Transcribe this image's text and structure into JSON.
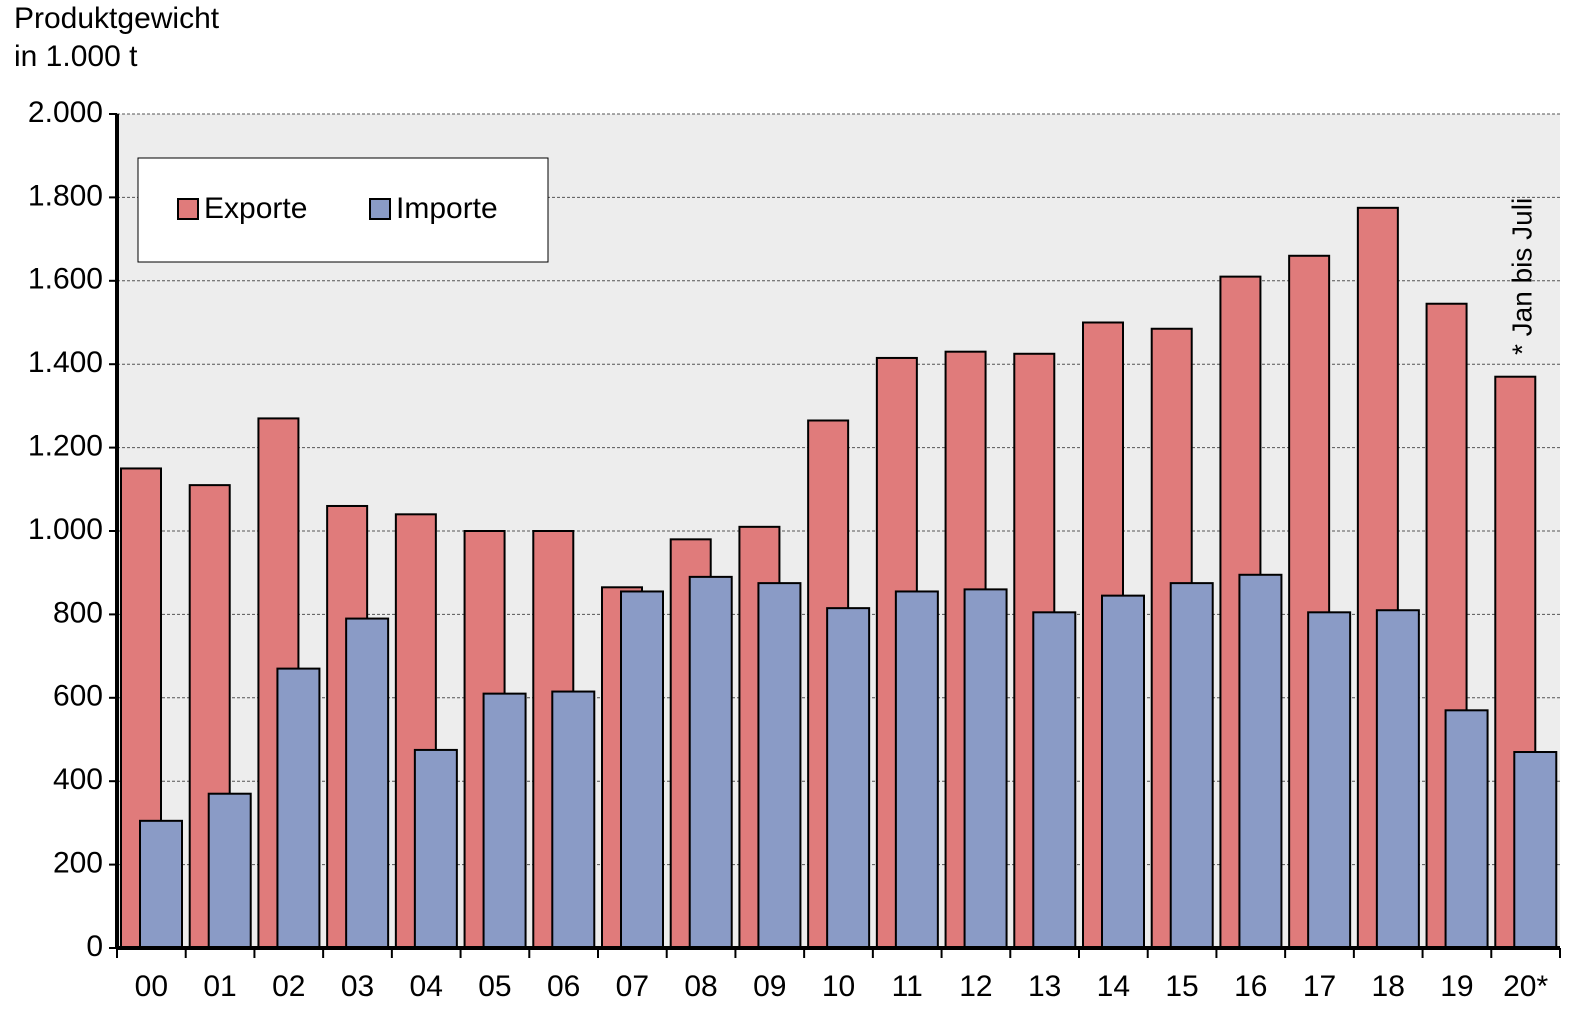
{
  "chart_data": {
    "type": "bar",
    "y_label_lines": [
      "Produktgewicht",
      "in 1.000 t"
    ],
    "annotation": "* Jan bis Juli",
    "categories": [
      "00",
      "01",
      "02",
      "03",
      "04",
      "05",
      "06",
      "07",
      "08",
      "09",
      "10",
      "11",
      "12",
      "13",
      "14",
      "15",
      "16",
      "17",
      "18",
      "19",
      "20*"
    ],
    "series": [
      {
        "name": "Exporte",
        "color": "#e07b7b",
        "values": [
          1150,
          1110,
          1270,
          1060,
          1040,
          1000,
          1000,
          865,
          980,
          1010,
          1265,
          1415,
          1430,
          1425,
          1500,
          1485,
          1610,
          1660,
          1775,
          1545,
          1370
        ]
      },
      {
        "name": "Importe",
        "color": "#8a9bc6",
        "values": [
          305,
          370,
          670,
          790,
          475,
          610,
          615,
          855,
          890,
          875,
          815,
          855,
          860,
          805,
          845,
          875,
          895,
          805,
          810,
          570,
          470
        ]
      }
    ],
    "ylim": [
      0,
      2000
    ],
    "yticks": [
      0,
      200,
      400,
      600,
      800,
      {
        "value": 1000,
        "label": "1.000"
      },
      {
        "value": 1200,
        "label": "1.200"
      },
      {
        "value": 1400,
        "label": "1.400"
      },
      {
        "value": 1600,
        "label": "1.600"
      },
      {
        "value": 1800,
        "label": "1.800"
      },
      {
        "value": 2000,
        "label": "2.000"
      }
    ],
    "grid": true,
    "legend": "upper left"
  }
}
